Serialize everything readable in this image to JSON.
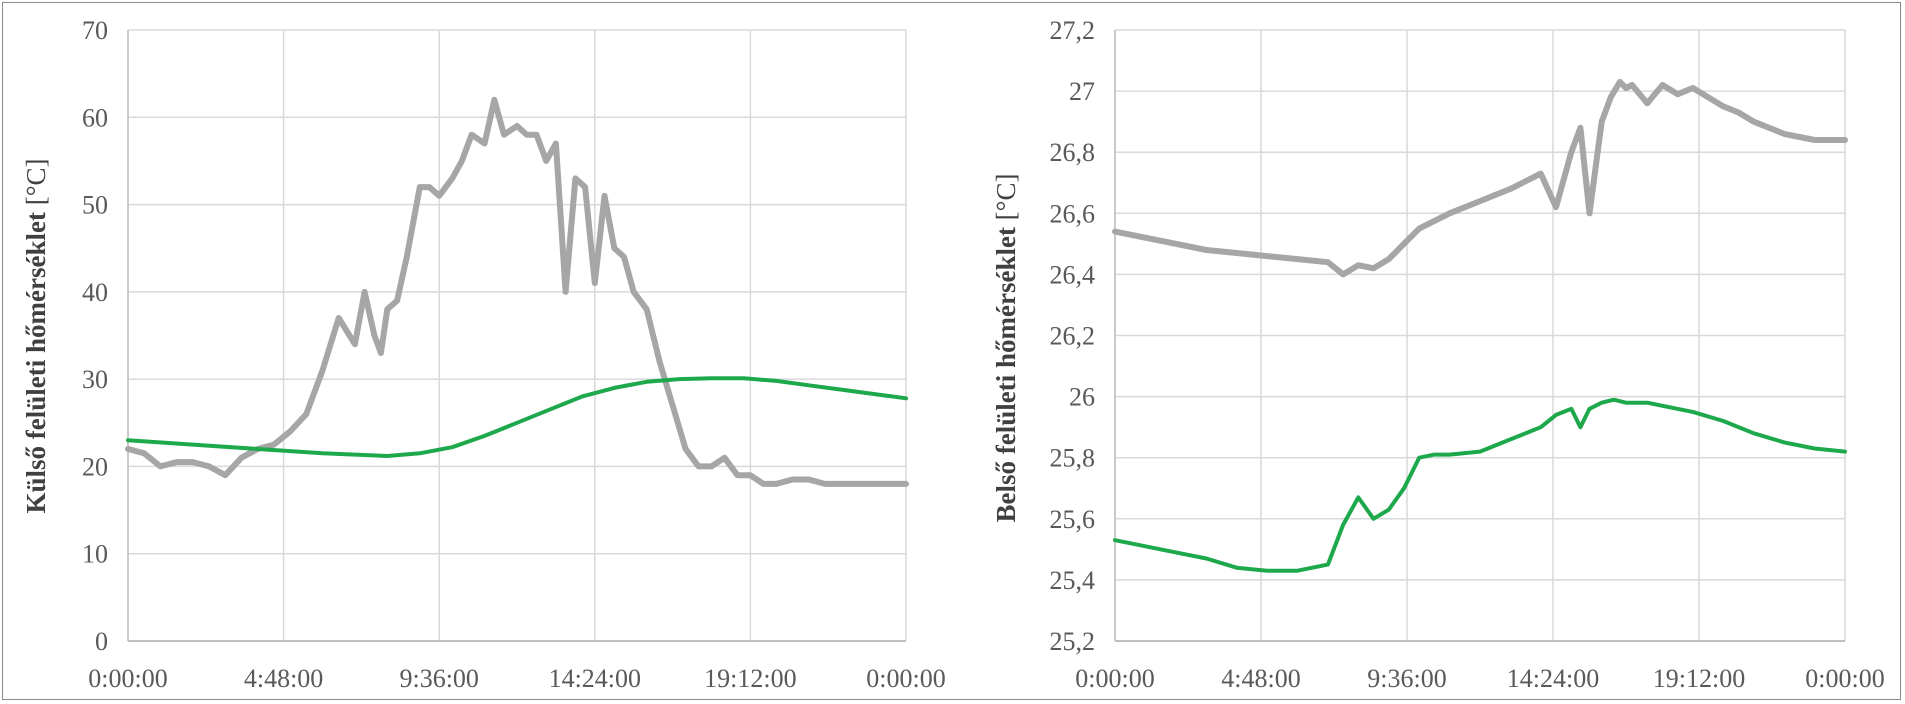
{
  "colors": {
    "grid": "#d9d9d9",
    "axis": "#bfbfbf",
    "gray_series": "#a6a6a6",
    "green_series": "#1ea84c",
    "text": "#595959"
  },
  "chart_data": [
    {
      "type": "line",
      "ylabel": "Külső felületi hőmérséklet",
      "yunit": "[°C]",
      "xlabel": "",
      "ylim": [
        0,
        70
      ],
      "yticks": [
        "0",
        "10",
        "20",
        "30",
        "40",
        "50",
        "60",
        "70"
      ],
      "xticks": [
        "0:00:00",
        "4:48:00",
        "9:36:00",
        "14:24:00",
        "19:12:00",
        "0:00:00"
      ],
      "x_hours_note": "x axis spans 0..24 h",
      "grid": true,
      "series": [
        {
          "color": "gray",
          "x": [
            0,
            0.5,
            1,
            1.5,
            2,
            2.5,
            3,
            3.5,
            4,
            4.5,
            5,
            5.5,
            6,
            6.5,
            7,
            7.3,
            7.6,
            7.8,
            8,
            8.3,
            8.6,
            9,
            9.3,
            9.6,
            10,
            10.3,
            10.6,
            11,
            11.3,
            11.6,
            12,
            12.3,
            12.6,
            12.9,
            13.2,
            13.5,
            13.8,
            14.1,
            14.4,
            14.7,
            15,
            15.3,
            15.6,
            16,
            16.4,
            16.8,
            17.2,
            17.6,
            18,
            18.4,
            18.8,
            19.2,
            19.6,
            20,
            20.5,
            21,
            21.5,
            22,
            22.5,
            23,
            23.5,
            24
          ],
          "values": [
            22,
            21.5,
            20,
            20.5,
            20.5,
            20,
            19,
            21,
            22,
            22.5,
            24,
            26,
            31,
            37,
            34,
            40,
            35,
            33,
            38,
            39,
            44,
            52,
            52,
            51,
            53,
            55,
            58,
            57,
            62,
            58,
            59,
            58,
            58,
            55,
            57,
            40,
            53,
            52,
            41,
            51,
            45,
            44,
            40,
            38,
            32,
            27,
            22,
            20,
            20,
            21,
            19,
            19,
            18,
            18,
            18.5,
            18.5,
            18,
            18,
            18,
            18,
            18,
            18
          ]
        },
        {
          "color": "green",
          "x": [
            0,
            2,
            4,
            6,
            8,
            9,
            10,
            11,
            12,
            13,
            14,
            15,
            16,
            17,
            18,
            19,
            20,
            21,
            22,
            23,
            24
          ],
          "values": [
            23,
            22.5,
            22,
            21.5,
            21.2,
            21.5,
            22.2,
            23.5,
            25,
            26.5,
            28,
            29,
            29.7,
            30,
            30.1,
            30.1,
            29.8,
            29.3,
            28.8,
            28.3,
            27.8
          ]
        }
      ]
    },
    {
      "type": "line",
      "ylabel": "Belső felületi hőmérséklet",
      "yunit": "[°C]",
      "xlabel": "",
      "ylim": [
        25.2,
        27.2
      ],
      "yticks": [
        "25,2",
        "25,4",
        "25,6",
        "25,8",
        "26",
        "26,2",
        "26,4",
        "26,6",
        "26,8",
        "27",
        "27,2"
      ],
      "xticks": [
        "0:00:00",
        "4:48:00",
        "9:36:00",
        "14:24:00",
        "19:12:00",
        "0:00:00"
      ],
      "grid": true,
      "series": [
        {
          "color": "gray",
          "x": [
            0,
            1,
            2,
            3,
            4,
            5,
            6,
            7,
            7.5,
            8,
            8.5,
            9,
            9.5,
            10,
            11,
            12,
            13,
            14,
            14.5,
            15,
            15.3,
            15.6,
            16,
            16.3,
            16.6,
            16.8,
            17,
            17.5,
            18,
            18.5,
            19,
            19.5,
            20,
            20.5,
            21,
            22,
            23,
            24
          ],
          "values": [
            26.54,
            26.52,
            26.5,
            26.48,
            26.47,
            26.46,
            26.45,
            26.44,
            26.4,
            26.43,
            26.42,
            26.45,
            26.5,
            26.55,
            26.6,
            26.64,
            26.68,
            26.73,
            26.62,
            26.8,
            26.88,
            26.6,
            26.9,
            26.98,
            27.03,
            27.01,
            27.02,
            26.96,
            27.02,
            26.99,
            27.01,
            26.98,
            26.95,
            26.93,
            26.9,
            26.86,
            26.84,
            26.84
          ],
          "x_note": "hours"
        },
        {
          "color": "green",
          "x": [
            0,
            1,
            2,
            3,
            4,
            5,
            6,
            7,
            7.5,
            8,
            8.5,
            9,
            9.5,
            10,
            10.5,
            11,
            12,
            13,
            14,
            14.5,
            15,
            15.3,
            15.6,
            16,
            16.4,
            16.8,
            17,
            17.5,
            18,
            19,
            20,
            21,
            22,
            23,
            24
          ],
          "values": [
            25.53,
            25.51,
            25.49,
            25.47,
            25.44,
            25.43,
            25.43,
            25.45,
            25.58,
            25.67,
            25.6,
            25.63,
            25.7,
            25.8,
            25.81,
            25.81,
            25.82,
            25.86,
            25.9,
            25.94,
            25.96,
            25.9,
            25.96,
            25.98,
            25.99,
            25.98,
            25.98,
            25.98,
            25.97,
            25.95,
            25.92,
            25.88,
            25.85,
            25.83,
            25.82
          ]
        }
      ]
    }
  ]
}
